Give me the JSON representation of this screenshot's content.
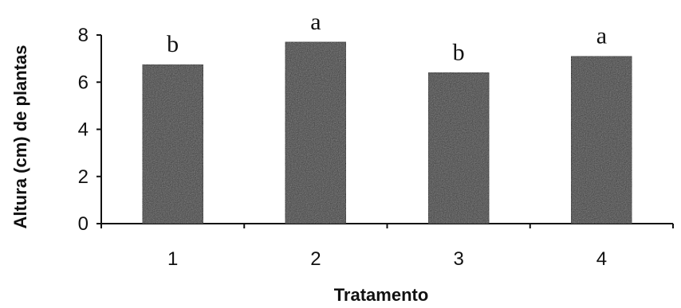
{
  "chart_data": {
    "type": "bar",
    "categories": [
      "1",
      "2",
      "3",
      "4"
    ],
    "values": [
      6.75,
      7.7,
      6.4,
      7.1
    ],
    "annotations": [
      "b",
      "a",
      "b",
      "a"
    ],
    "xlabel": "Tratamento",
    "ylabel": "Altura (cm) de plantas",
    "ylim": [
      0,
      8
    ],
    "yticks": [
      "0",
      "2",
      "4",
      "6",
      "8"
    ],
    "grid": false,
    "bar_color": "#3a3a3a"
  }
}
